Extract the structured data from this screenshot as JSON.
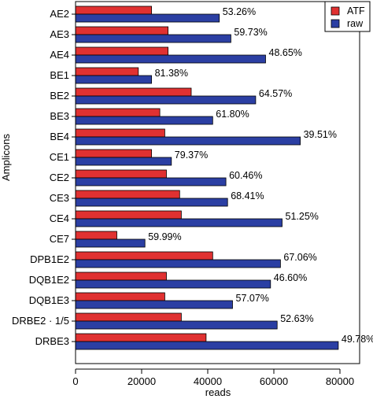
{
  "chart_data": {
    "type": "bar",
    "orientation": "horizontal",
    "categories": [
      "AE2",
      "AE3",
      "AE4",
      "BE1",
      "BE2",
      "BE3",
      "BE4",
      "CE1",
      "CE2",
      "CE3",
      "CE4",
      "CE7",
      "DPB1E2",
      "DQB1E2",
      "DQB1E3",
      "DRBE2 · 1/5",
      "DRBE3"
    ],
    "series": [
      {
        "name": "ATF",
        "color": "#e03131",
        "values": [
          23000,
          28000,
          28000,
          19000,
          35000,
          25500,
          27000,
          23000,
          27500,
          31500,
          32000,
          12500,
          41500,
          27500,
          27000,
          32000,
          39500
        ]
      },
      {
        "name": "raw",
        "color": "#2b3fa3",
        "values": [
          43500,
          47000,
          57500,
          23000,
          54500,
          41500,
          68000,
          29000,
          45500,
          46000,
          62500,
          21000,
          62000,
          59000,
          47500,
          61000,
          79500
        ]
      }
    ],
    "annotations": [
      "53.26%",
      "59.73%",
      "48.65%",
      "81.38%",
      "64.57%",
      "61.80%",
      "39.51%",
      "79.37%",
      "60.46%",
      "68.41%",
      "51.25%",
      "59.99%",
      "67.06%",
      "46.60%",
      "57.07%",
      "52.63%",
      "49.78%"
    ],
    "xlabel": "reads",
    "ylabel": "Amplicons",
    "xlim": [
      0,
      80000
    ],
    "xticks": [
      0,
      20000,
      40000,
      60000,
      80000
    ],
    "xtick_labels": [
      "0",
      "20000",
      "40000",
      "60000",
      "80000"
    ],
    "legend": {
      "placement": "top-right",
      "entries": [
        "ATF",
        "raw"
      ]
    },
    "grid": false
  }
}
